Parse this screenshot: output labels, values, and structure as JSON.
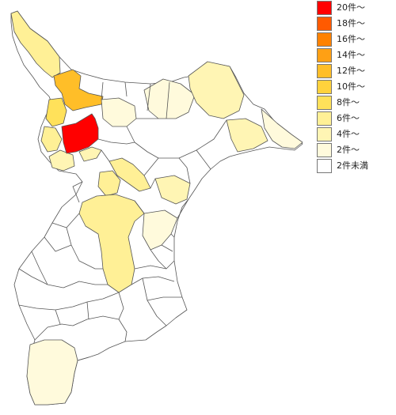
{
  "legend": [
    {
      "label": "20件～",
      "color": "#ff0000"
    },
    {
      "label": "18件～",
      "color": "#ff5a00"
    },
    {
      "label": "16件～",
      "color": "#ff8200"
    },
    {
      "label": "14件～",
      "color": "#ffa014"
    },
    {
      "label": "12件～",
      "color": "#ffbe28"
    },
    {
      "label": "10件～",
      "color": "#ffd23c"
    },
    {
      "label": "8件～",
      "color": "#ffe15a"
    },
    {
      "label": "6件～",
      "color": "#fff096"
    },
    {
      "label": "4件～",
      "color": "#fff5b4"
    },
    {
      "label": "2件～",
      "color": "#fffadc"
    },
    {
      "label": "2件未満",
      "color": "#ffffff"
    }
  ]
}
